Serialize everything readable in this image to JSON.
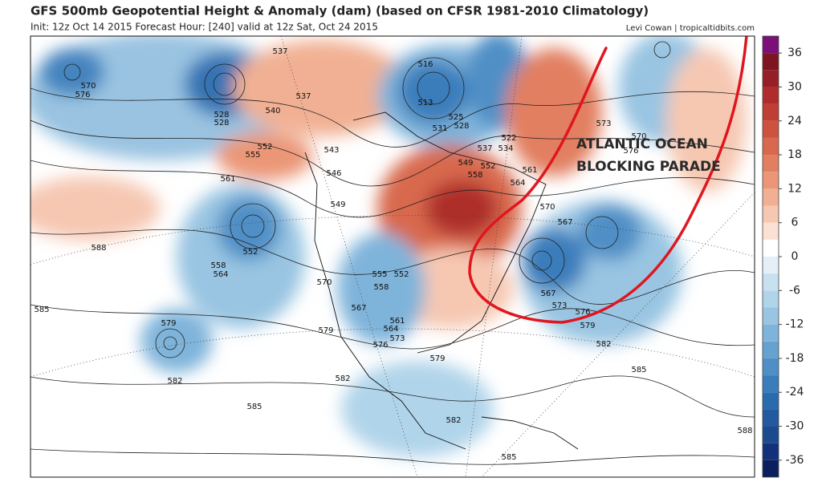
{
  "header": {
    "title": "GFS 500mb Geopotential Height & Anomaly (dam) (based on CFSR 1981-2010 Climatology)",
    "subtitle": "Init: 12z Oct 14 2015   Forecast Hour: [240]   valid at 12z Sat, Oct 24 2015",
    "credit": "Levi Cowan | tropicaltidbits.com"
  },
  "annotation": [
    "ATLANTIC OCEAN",
    "BLOCKING PARADE"
  ],
  "colorbar": {
    "range": [
      -39,
      39
    ],
    "ticks": [
      36,
      30,
      24,
      18,
      12,
      6,
      0,
      -6,
      -12,
      -18,
      -24,
      -30,
      -36
    ],
    "colors": [
      "#0b1f5e",
      "#13317a",
      "#1b4a8f",
      "#22599f",
      "#2a6aae",
      "#3a7dbb",
      "#4f8fc6",
      "#66a2d0",
      "#7fb4da",
      "#99c5e2",
      "#b0d4ea",
      "#c8e1f0",
      "#e4eff7",
      "#ffffff",
      "#fbe0d4",
      "#f6c8b2",
      "#f1b093",
      "#eb9777",
      "#e27f60",
      "#d8694e",
      "#cd533f",
      "#c03f34",
      "#ae2d2c",
      "#961f27",
      "#7c1520",
      "#7a1078"
    ]
  },
  "contour_labels": [
    "537",
    "516",
    "570",
    "576",
    "537",
    "540",
    "513",
    "525",
    "528",
    "528",
    "531",
    "528",
    "522",
    "534",
    "537",
    "552",
    "555",
    "543",
    "549",
    "552",
    "561",
    "546",
    "558",
    "564",
    "561",
    "570",
    "549",
    "567",
    "588",
    "552",
    "555",
    "552",
    "558",
    "564",
    "558",
    "570",
    "567",
    "561",
    "564",
    "573",
    "576",
    "579",
    "579",
    "585",
    "567",
    "573",
    "576",
    "579",
    "582",
    "585",
    "579",
    "582",
    "582",
    "585",
    "582",
    "585",
    "588",
    "573",
    "570",
    "576"
  ]
}
